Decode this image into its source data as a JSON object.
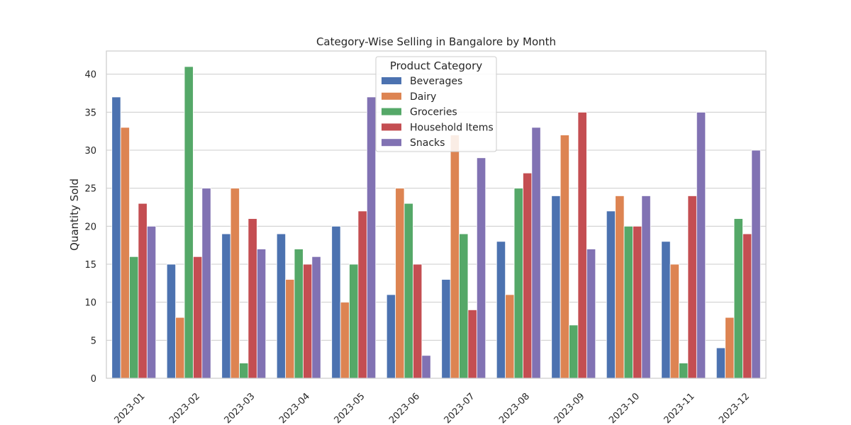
{
  "chart_data": {
    "type": "bar",
    "title": "Category-Wise Selling in Bangalore by Month",
    "xlabel": "",
    "ylabel": "Quantity Sold",
    "ylim": [
      0,
      43.05
    ],
    "yticks": [
      0,
      5,
      10,
      15,
      20,
      25,
      30,
      35,
      40
    ],
    "grid": true,
    "legend": {
      "title": "Product Category",
      "placement": "top-center"
    },
    "categories": [
      "2023-01",
      "2023-02",
      "2023-03",
      "2023-04",
      "2023-05",
      "2023-06",
      "2023-07",
      "2023-08",
      "2023-09",
      "2023-10",
      "2023-11",
      "2023-12"
    ],
    "series": [
      {
        "name": "Beverages",
        "color": "#4c72b0",
        "values": [
          37,
          15,
          19,
          19,
          20,
          11,
          13,
          18,
          24,
          22,
          18,
          4
        ]
      },
      {
        "name": "Dairy",
        "color": "#dd8452",
        "values": [
          33,
          8,
          25,
          13,
          10,
          25,
          32,
          11,
          32,
          24,
          15,
          8
        ]
      },
      {
        "name": "Groceries",
        "color": "#55a868",
        "values": [
          16,
          41,
          2,
          17,
          15,
          23,
          19,
          25,
          7,
          20,
          2,
          21
        ]
      },
      {
        "name": "Household Items",
        "color": "#c44e52",
        "values": [
          23,
          16,
          21,
          15,
          22,
          15,
          9,
          27,
          35,
          20,
          24,
          19
        ]
      },
      {
        "name": "Snacks",
        "color": "#8172b3",
        "values": [
          20,
          25,
          17,
          16,
          37,
          3,
          29,
          33,
          17,
          24,
          35,
          30
        ]
      }
    ]
  }
}
